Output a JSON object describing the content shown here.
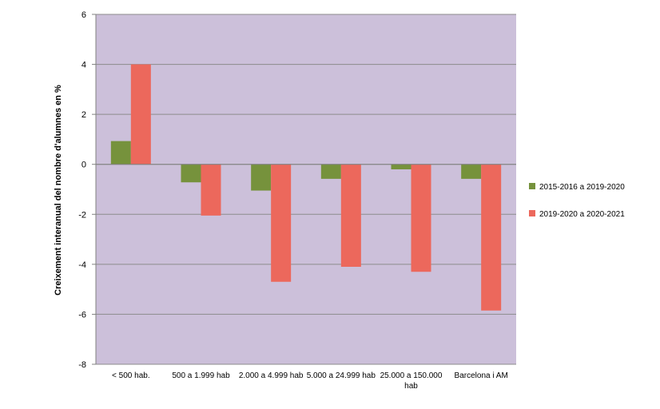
{
  "chart_data": {
    "type": "bar",
    "title": "",
    "xlabel": "",
    "ylabel": "Creixement interanual del nombre d'alumnes en %",
    "ylim": [
      -8,
      6
    ],
    "yticks": [
      6,
      4,
      2,
      0,
      -2,
      -4,
      -6,
      -8
    ],
    "grid": true,
    "legend_position": "right",
    "categories": [
      [
        "< 500 hab."
      ],
      [
        "500 a 1.999 hab"
      ],
      [
        "2.000 a 4.999 hab"
      ],
      [
        "5.000 a 24.999 hab"
      ],
      [
        "25.000 a 150.000",
        "hab"
      ],
      [
        "Barcelona i AM"
      ]
    ],
    "series": [
      {
        "name": "2015-2016 a 2019-2020",
        "color": "#76923c",
        "values": [
          0.93,
          -0.72,
          -1.05,
          -0.58,
          -0.2,
          -0.58
        ]
      },
      {
        "name": "2019-2020 a 2020-2021",
        "color": "#ec685c",
        "values": [
          4.0,
          -2.05,
          -4.7,
          -4.1,
          -4.3,
          -5.85
        ]
      }
    ],
    "plot_background": "#ccc0da",
    "gridline_color": "#8c8c8c"
  }
}
